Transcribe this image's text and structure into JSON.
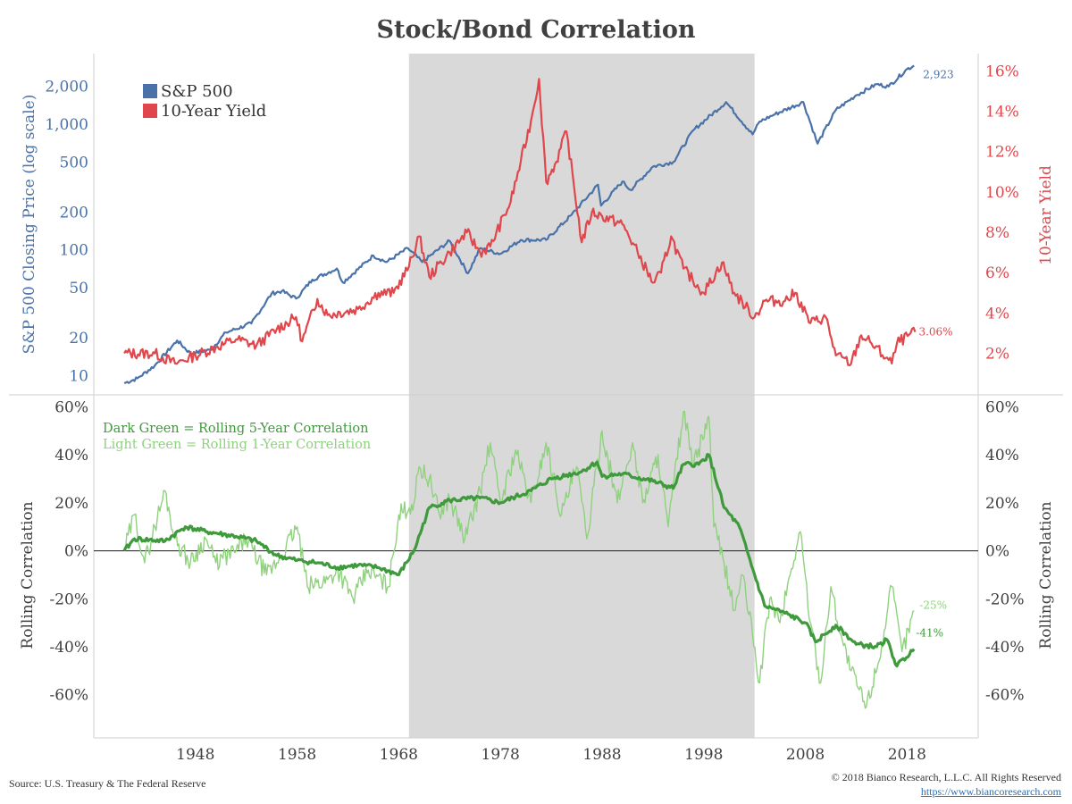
{
  "chart_data": {
    "type": "line",
    "title": "Stock/Bond Correlation",
    "shaded_period": [
      1969,
      2003
    ],
    "x_ticks": [
      "1948",
      "1958",
      "1968",
      "1978",
      "1988",
      "1998",
      "2008",
      "2018"
    ],
    "colors": {
      "sp500": "#4a72a8",
      "yield": "#e0474c",
      "corr5": "#3f9a3c",
      "corr1": "#8fd17e",
      "shade": "#d9d9d9"
    },
    "top_panel": {
      "left_axis_label": "S&P 500 Closing Price (log scale)",
      "right_axis_label": "10-Year Yield",
      "left_scale": "log",
      "left_ylim": [
        8,
        3200
      ],
      "left_ticks": [
        "10",
        "20",
        "50",
        "100",
        "200",
        "500",
        "1,000",
        "2,000"
      ],
      "right_ylim": [
        0.3,
        16.5
      ],
      "right_ticks": [
        "2%",
        "4%",
        "6%",
        "8%",
        "10%",
        "12%",
        "14%",
        "16%"
      ],
      "legend": [
        "S&P 500",
        "10-Year Yield"
      ],
      "legend_position": "top-left",
      "series": [
        {
          "name": "S&P 500",
          "axis": "left",
          "end_label": "2,923",
          "x": [
            1941.0,
            1942.3,
            1944.0,
            1946.2,
            1947.5,
            1949.5,
            1951.0,
            1953.5,
            1955.5,
            1956.5,
            1957.9,
            1959.5,
            1961.9,
            1962.5,
            1965.5,
            1966.8,
            1968.9,
            1970.3,
            1973.0,
            1974.8,
            1976.0,
            1978.0,
            1980.0,
            1982.5,
            1985.0,
            1987.6,
            1987.9,
            1990.0,
            1990.8,
            1993.0,
            1995.0,
            1997.0,
            2000.2,
            2002.8,
            2003.5,
            2005.0,
            2007.8,
            2009.2,
            2011.0,
            2013.0,
            2015.0,
            2016.2,
            2018.0,
            2018.7
          ],
          "y": [
            8.7,
            9.5,
            12,
            19,
            15,
            16,
            22,
            26,
            45,
            47,
            41,
            58,
            71,
            55,
            90,
            80,
            103,
            80,
            118,
            65,
            103,
            93,
            120,
            120,
            190,
            330,
            225,
            350,
            300,
            460,
            500,
            900,
            1500,
            830,
            1050,
            1200,
            1500,
            700,
            1300,
            1700,
            2080,
            2000,
            2750,
            2920
          ]
        },
        {
          "name": "10-Year Yield",
          "axis": "right",
          "end_label": "3.06%",
          "x": [
            1941.0,
            1944.0,
            1946.0,
            1948.0,
            1950.0,
            1952.0,
            1954.0,
            1956.0,
            1957.9,
            1958.5,
            1960.0,
            1961.0,
            1964.0,
            1966.0,
            1967.5,
            1969.0,
            1970.0,
            1971.0,
            1973.0,
            1974.7,
            1976.0,
            1977.0,
            1979.0,
            1980.0,
            1981.0,
            1981.8,
            1982.5,
            1983.5,
            1984.5,
            1986.0,
            1987.0,
            1988.0,
            1990.0,
            1991.5,
            1993.0,
            1993.8,
            1994.8,
            1996.0,
            1998.0,
            1999.8,
            2001.0,
            2003.0,
            2004.0,
            2006.0,
            2007.0,
            2008.5,
            2010.0,
            2011.0,
            2012.5,
            2013.5,
            2014.5,
            2016.5,
            2017.0,
            2018.8
          ],
          "y": [
            2.0,
            2.0,
            1.5,
            1.9,
            2.3,
            2.7,
            2.4,
            3.2,
            3.8,
            2.6,
            4.7,
            3.9,
            4.2,
            5.0,
            5.0,
            6.3,
            7.8,
            5.8,
            7.0,
            8.0,
            7.0,
            7.3,
            9.5,
            11.5,
            13.5,
            15.6,
            10.5,
            11.5,
            13.0,
            7.5,
            9.0,
            8.8,
            8.4,
            7.0,
            5.5,
            6.0,
            7.8,
            6.2,
            5.0,
            6.5,
            5.0,
            3.8,
            4.6,
            4.6,
            5.0,
            3.5,
            3.8,
            1.9,
            1.5,
            2.9,
            2.5,
            1.5,
            2.5,
            3.06
          ]
        }
      ]
    },
    "bottom_panel": {
      "left_axis_label": "Rolling Correlation",
      "right_axis_label": "Rolling Correlation",
      "ylim": [
        -0.75,
        0.62
      ],
      "y_ticks": [
        "60%",
        "40%",
        "20%",
        "0%",
        "-20%",
        "-40%",
        "-60%"
      ],
      "y_tick_values": [
        0.6,
        0.4,
        0.2,
        0,
        -0.2,
        -0.4,
        -0.6
      ],
      "legend": [
        "Dark Green = Rolling 5-Year Correlation",
        "Light Green = Rolling 1-Year Correlation"
      ],
      "legend_position": "top-left",
      "series": [
        {
          "name": "Rolling 5-Year Correlation",
          "end_label": "-41%",
          "x": [
            1941.0,
            1942.0,
            1945.0,
            1947.0,
            1949.0,
            1952.0,
            1954.0,
            1956.0,
            1958.0,
            1960.0,
            1962.0,
            1964.0,
            1966.0,
            1968.0,
            1969.5,
            1971.0,
            1973.0,
            1976.0,
            1978.0,
            1981.0,
            1983.0,
            1986.0,
            1987.5,
            1988.0,
            1990.0,
            1993.0,
            1995.0,
            1996.0,
            1997.5,
            1998.5,
            2000.0,
            2001.5,
            2003.0,
            2004.0,
            2006.0,
            2008.0,
            2009.0,
            2011.0,
            2013.0,
            2015.0,
            2016.0,
            2017.0,
            2018.7
          ],
          "y": [
            0.0,
            0.05,
            0.04,
            0.1,
            0.08,
            0.06,
            0.04,
            -0.02,
            -0.04,
            -0.05,
            -0.07,
            -0.06,
            -0.07,
            -0.1,
            0.0,
            0.18,
            0.21,
            0.22,
            0.2,
            0.25,
            0.3,
            0.33,
            0.37,
            0.31,
            0.32,
            0.29,
            0.26,
            0.36,
            0.36,
            0.4,
            0.18,
            0.1,
            -0.1,
            -0.23,
            -0.26,
            -0.3,
            -0.38,
            -0.31,
            -0.39,
            -0.4,
            -0.37,
            -0.48,
            -0.41
          ]
        },
        {
          "name": "Rolling 1-Year Correlation",
          "end_label": "-25%",
          "x": [
            1941.0,
            1942.0,
            1943.0,
            1944.0,
            1945.0,
            1946.0,
            1947.5,
            1949.0,
            1950.0,
            1952.0,
            1953.0,
            1955.0,
            1956.0,
            1958.0,
            1959.0,
            1961.0,
            1962.0,
            1963.5,
            1965.0,
            1967.0,
            1968.0,
            1969.5,
            1970.0,
            1971.0,
            1972.0,
            1973.0,
            1974.5,
            1976.0,
            1977.0,
            1978.0,
            1979.5,
            1981.0,
            1982.5,
            1984.0,
            1985.5,
            1986.5,
            1988.0,
            1989.5,
            1991.0,
            1992.0,
            1993.5,
            1994.5,
            1996.0,
            1997.0,
            1998.5,
            1999.0,
            2000.0,
            2001.0,
            2001.8,
            2002.8,
            2003.5,
            2004.5,
            2005.5,
            2006.5,
            2007.5,
            2008.5,
            2009.5,
            2010.5,
            2011.5,
            2012.5,
            2014.0,
            2015.5,
            2016.5,
            2017.5,
            2018.7
          ],
          "y": [
            0.0,
            0.15,
            -0.05,
            0.1,
            0.25,
            0.05,
            -0.05,
            0.05,
            -0.05,
            0.0,
            0.05,
            -0.1,
            -0.05,
            0.1,
            -0.15,
            -0.12,
            -0.08,
            -0.2,
            -0.08,
            -0.15,
            0.15,
            0.2,
            0.35,
            0.3,
            0.15,
            0.22,
            0.05,
            0.25,
            0.45,
            0.2,
            0.42,
            0.2,
            0.45,
            0.15,
            0.35,
            0.05,
            0.5,
            0.2,
            0.45,
            0.2,
            0.4,
            0.1,
            0.58,
            0.35,
            0.56,
            0.1,
            -0.05,
            -0.25,
            -0.1,
            -0.35,
            -0.55,
            -0.2,
            -0.3,
            -0.1,
            0.08,
            -0.3,
            -0.55,
            -0.15,
            -0.35,
            -0.5,
            -0.65,
            -0.4,
            -0.15,
            -0.42,
            -0.25
          ]
        }
      ]
    }
  },
  "footer": {
    "source": "Source: U.S. Treasury & The Federal Reserve",
    "copyright": "© 2018 Bianco Research, L.L.C. All Rights Reserved",
    "url": "https://www.biancoresearch.com"
  }
}
